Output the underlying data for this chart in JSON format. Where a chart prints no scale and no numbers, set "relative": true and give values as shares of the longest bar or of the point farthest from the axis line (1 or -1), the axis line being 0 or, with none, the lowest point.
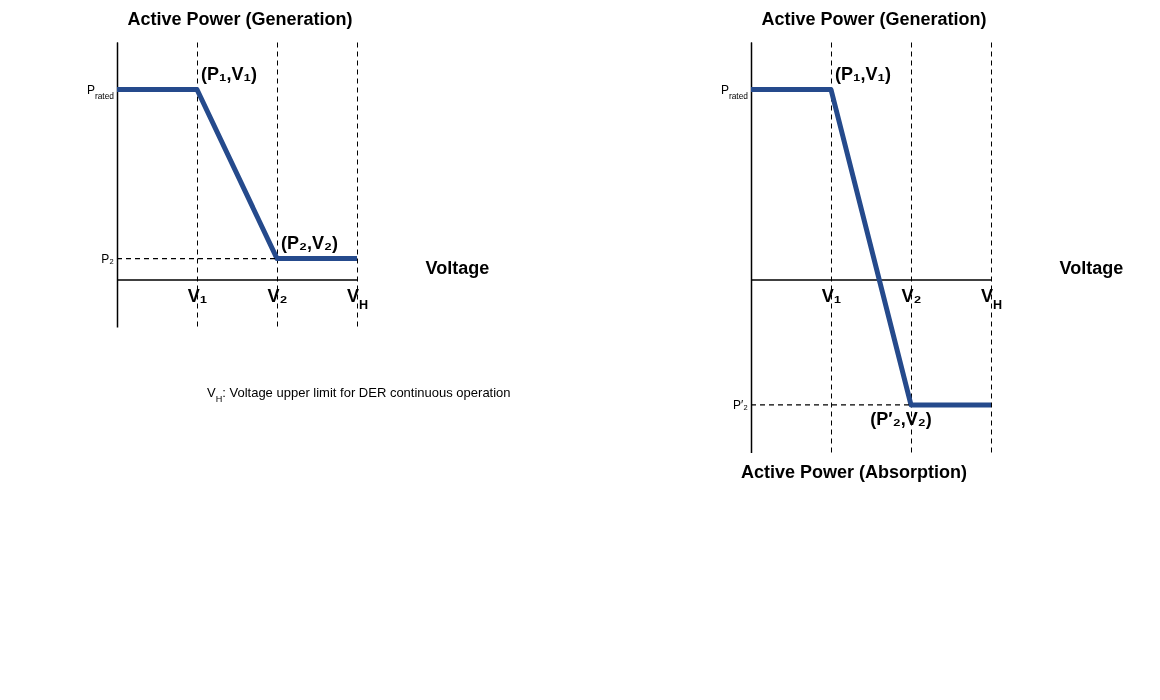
{
  "chart_data": [
    {
      "type": "line",
      "relative": true,
      "ylabel": "Active Power (Generation)",
      "xlabel": "Voltage",
      "categories": [
        null,
        "V₁",
        "V₂",
        "V$_{H}$"
      ],
      "grid": "x",
      "series": [
        {
          "color": "#254a8c",
          "values": [
            1,
            1,
            0.11,
            0.11
          ]
        }
      ],
      "ref_lines": [
        {
          "axis": "y",
          "value": 0.11,
          "label": "P₂",
          "line_style": "dashed"
        }
      ],
      "annotations": [
        "P$_{rated}$",
        {
          "text": "(P₁,V₁)",
          "x": "V₁",
          "y": 1
        },
        {
          "text": "(P₂,V₂)",
          "x": "V₂",
          "y": 0.11
        },
        "V$_{H}$: Voltage upper limit for DER continuous operation"
      ]
    },
    {
      "type": "line",
      "relative": true,
      "ylabel": "Active Power (Generation)",
      "xlabel": "Voltage",
      "categories": [
        null,
        "V₁",
        "V₂",
        "V$_{H}$"
      ],
      "grid": "x",
      "series": [
        {
          "color": "#254a8c",
          "values": [
            1,
            1,
            -0.66,
            -0.66
          ]
        }
      ],
      "ref_lines": [
        {
          "axis": "y",
          "value": -0.66,
          "label": "P′₂",
          "line_style": "dashed"
        }
      ],
      "annotations": [
        "P$_{rated}$",
        {
          "text": "(P₁,V₁)",
          "x": "V₁",
          "y": 1
        },
        {
          "text": "(P′₂,V₂)",
          "x": "V₂",
          "y": -0.66
        },
        "Active Power (Absorption)"
      ]
    }
  ]
}
